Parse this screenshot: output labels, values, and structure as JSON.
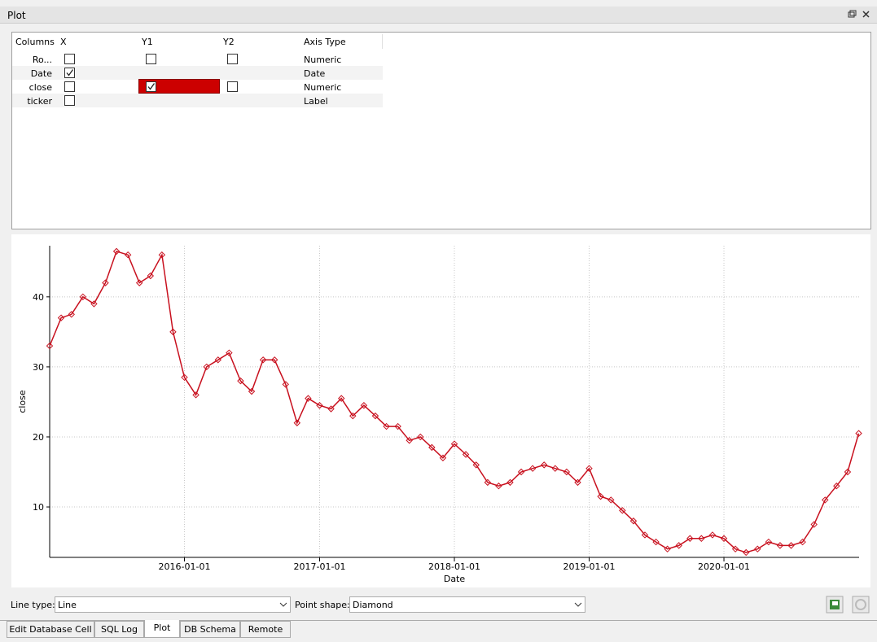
{
  "panel_title": "Plot",
  "columns_table": {
    "headers": [
      "Columns",
      "X",
      "Y1",
      "Y2",
      "Axis Type"
    ],
    "rows": [
      {
        "name": "Ro...",
        "x": false,
        "y1": false,
        "y2": false,
        "axis_type": "Numeric"
      },
      {
        "name": "Date",
        "x": true,
        "y1": null,
        "y2": null,
        "axis_type": "Date"
      },
      {
        "name": "close",
        "x": false,
        "y1": true,
        "y1_color": "#cc0000",
        "y2": false,
        "axis_type": "Numeric"
      },
      {
        "name": "ticker",
        "x": false,
        "y1": null,
        "y2": null,
        "axis_type": "Label"
      }
    ]
  },
  "chart_data": {
    "type": "line",
    "xlabel": "Date",
    "ylabel": "close",
    "x": [
      "2015-01-01",
      "2015-02-01",
      "2015-03-01",
      "2015-04-01",
      "2015-05-01",
      "2015-06-01",
      "2015-07-01",
      "2015-08-01",
      "2015-09-01",
      "2015-10-01",
      "2015-11-01",
      "2015-12-01",
      "2016-01-01",
      "2016-02-01",
      "2016-03-01",
      "2016-04-01",
      "2016-05-01",
      "2016-06-01",
      "2016-07-01",
      "2016-08-01",
      "2016-09-01",
      "2016-10-01",
      "2016-11-01",
      "2016-12-01",
      "2017-01-01",
      "2017-02-01",
      "2017-03-01",
      "2017-04-01",
      "2017-05-01",
      "2017-06-01",
      "2017-07-01",
      "2017-08-01",
      "2017-09-01",
      "2017-10-01",
      "2017-11-01",
      "2017-12-01",
      "2018-01-01",
      "2018-02-01",
      "2018-03-01",
      "2018-04-01",
      "2018-05-01",
      "2018-06-01",
      "2018-07-01",
      "2018-08-01",
      "2018-09-01",
      "2018-10-01",
      "2018-11-01",
      "2018-12-01",
      "2019-01-01",
      "2019-02-01",
      "2019-03-01",
      "2019-04-01",
      "2019-05-01",
      "2019-06-01",
      "2019-07-01",
      "2019-08-01",
      "2019-09-01",
      "2019-10-01",
      "2019-11-01",
      "2019-12-01",
      "2020-01-01",
      "2020-02-01",
      "2020-03-01",
      "2020-04-01",
      "2020-05-01",
      "2020-06-01",
      "2020-07-01",
      "2020-08-01",
      "2020-09-01",
      "2020-10-01",
      "2020-11-01",
      "2020-12-01",
      "2020-12-31"
    ],
    "series": [
      {
        "name": "close",
        "color": "#c8101e",
        "values": [
          33,
          37,
          37.5,
          40,
          39,
          42,
          46.5,
          46,
          42,
          43,
          46,
          35,
          28.5,
          26,
          30,
          31,
          32,
          28,
          26.5,
          31,
          31,
          27.5,
          22,
          25.5,
          24.5,
          24,
          25.5,
          23,
          24.5,
          23,
          21.5,
          21.5,
          19.5,
          20,
          18.5,
          17,
          19,
          17.5,
          16,
          13.5,
          13,
          13.5,
          15,
          15.5,
          16,
          15.5,
          15,
          13.5,
          15.5,
          11.5,
          11,
          9.5,
          8,
          6,
          5,
          4,
          4.5,
          5.5,
          5.5,
          6,
          5.5,
          4,
          3.5,
          4,
          5,
          4.5,
          4.5,
          5,
          7.5,
          11,
          13,
          15,
          20.5
        ]
      }
    ],
    "xlim": [
      "2015-01-01",
      "2021-01-01"
    ],
    "xticks": [
      "2016-01-01",
      "2017-01-01",
      "2018-01-01",
      "2019-01-01",
      "2020-01-01"
    ],
    "ylim": [
      2.8,
      47.3
    ],
    "yticks": [
      10,
      20,
      30,
      40
    ],
    "grid": true
  },
  "controls": {
    "line_type_label": "Line type:",
    "line_type": "Line",
    "point_shape_label": "Point shape:",
    "point_shape": "Diamond"
  },
  "tabs": [
    "Edit Database Cell",
    "SQL Log",
    "Plot",
    "DB Schema",
    "Remote"
  ],
  "active_tab": 2
}
